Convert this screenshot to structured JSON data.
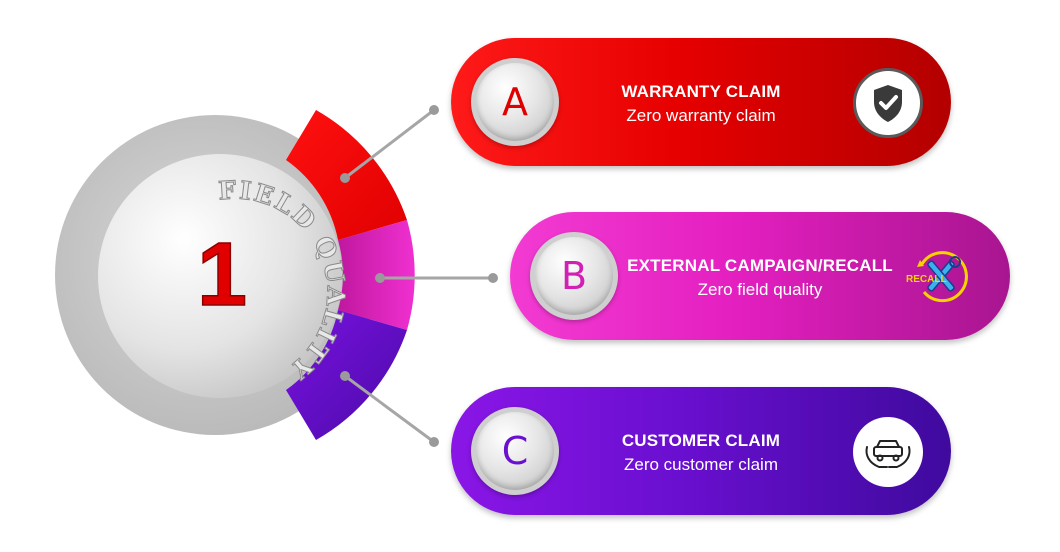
{
  "center": {
    "number": "1",
    "ring_text": "FIELD QUALITY"
  },
  "items": [
    {
      "letter": "A",
      "title": "WARRANTY CLAIM",
      "subtitle": "Zero warranty  claim",
      "icon": "shield-check-icon",
      "color": "#e60000"
    },
    {
      "letter": "B",
      "title": "EXTERNAL CAMPAIGN/RECALL",
      "subtitle": "Zero field quality",
      "icon": "recall-tools-icon",
      "icon_text": "RECALL",
      "color": "#e41fc0"
    },
    {
      "letter": "C",
      "title": "CUSTOMER  CLAIM",
      "subtitle": "Zero customer claim",
      "icon": "car-hands-icon",
      "color": "#6a0fd0"
    }
  ]
}
